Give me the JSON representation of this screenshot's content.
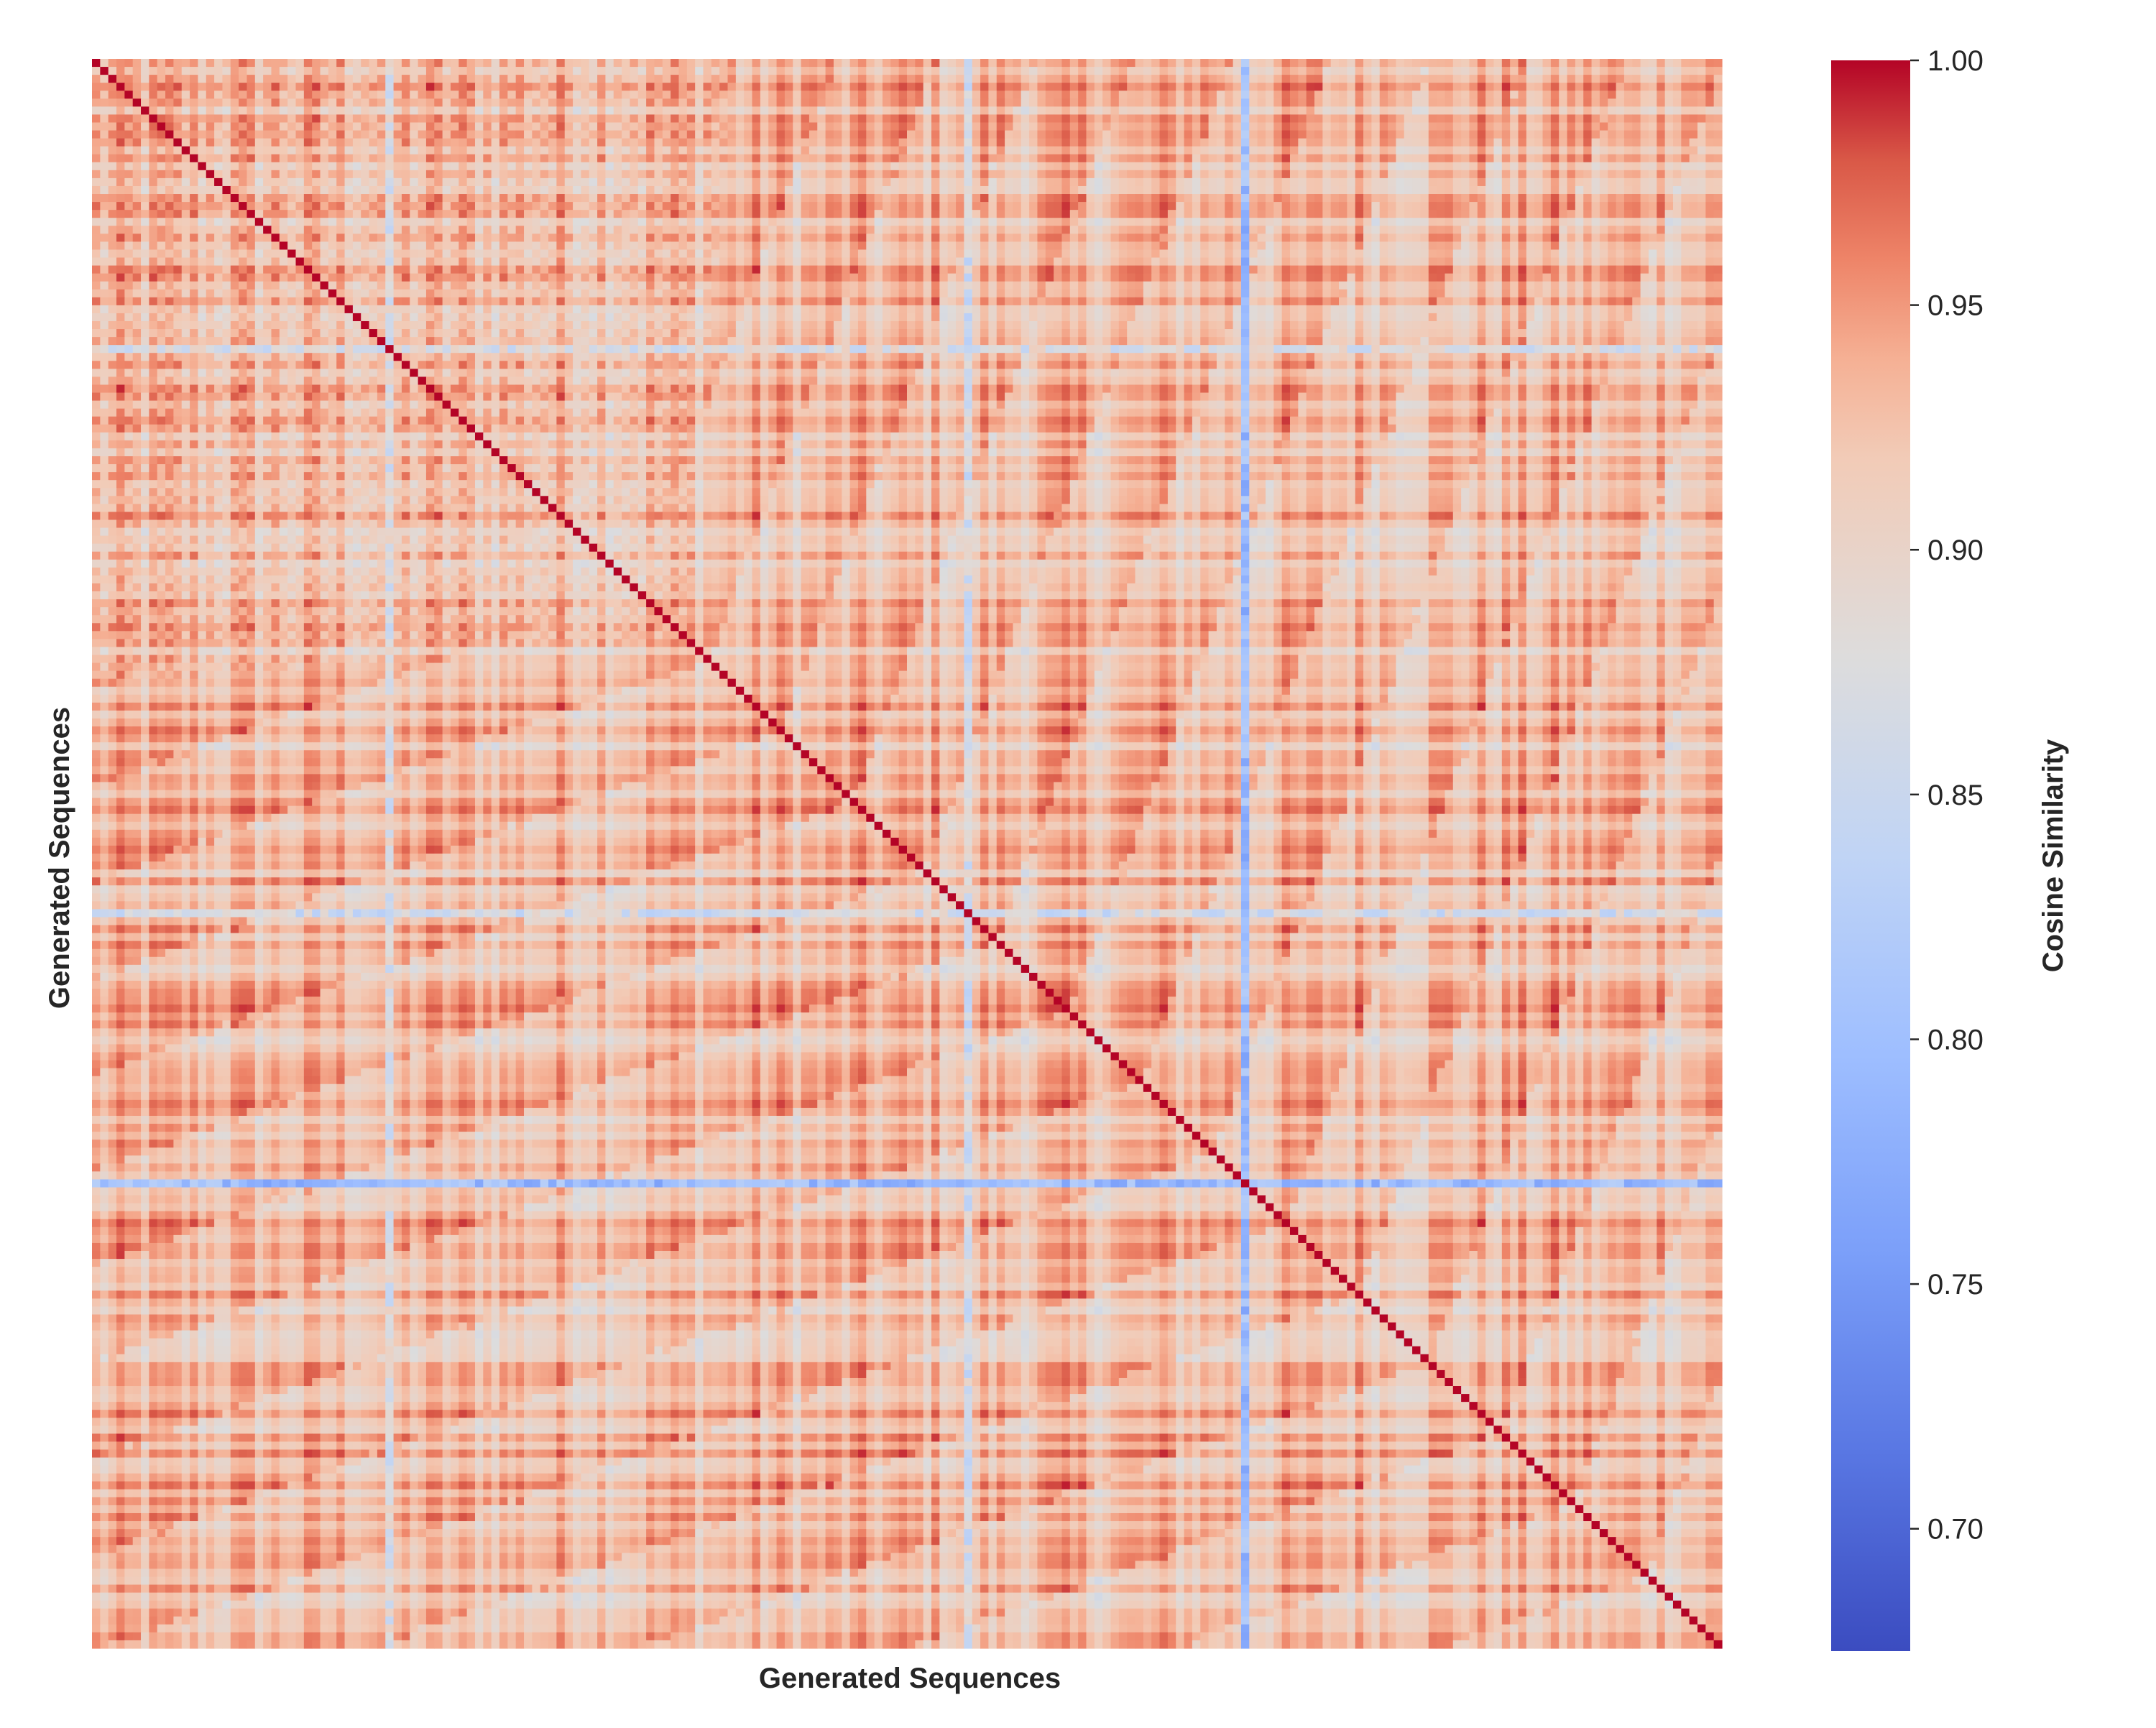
{
  "chart_data": {
    "type": "heatmap",
    "title": "",
    "xlabel": "Generated Sequences",
    "ylabel": "Generated Sequences",
    "n": 200,
    "diagonal_value": 1.0,
    "typical_range": [
      0.88,
      0.99
    ],
    "low_similarity_sequences": [
      {
        "index": 36,
        "typical_value": 0.86
      },
      {
        "index": 107,
        "typical_value": 0.85
      },
      {
        "index": 141,
        "typical_value": 0.78
      }
    ],
    "colorbar": {
      "label": "Cosine Similarity",
      "range": [
        0.675,
        1.0
      ],
      "ticks": [
        0.7,
        0.75,
        0.8,
        0.85,
        0.9,
        0.95,
        1.0
      ],
      "tick_labels": [
        "0.70",
        "0.75",
        "0.80",
        "0.85",
        "0.90",
        "0.95",
        "1.00"
      ],
      "colormap": "coolwarm",
      "low_color": "#3b4cc0",
      "mid_color": "#dddcdc",
      "high_color": "#b40426"
    },
    "grid": false
  }
}
